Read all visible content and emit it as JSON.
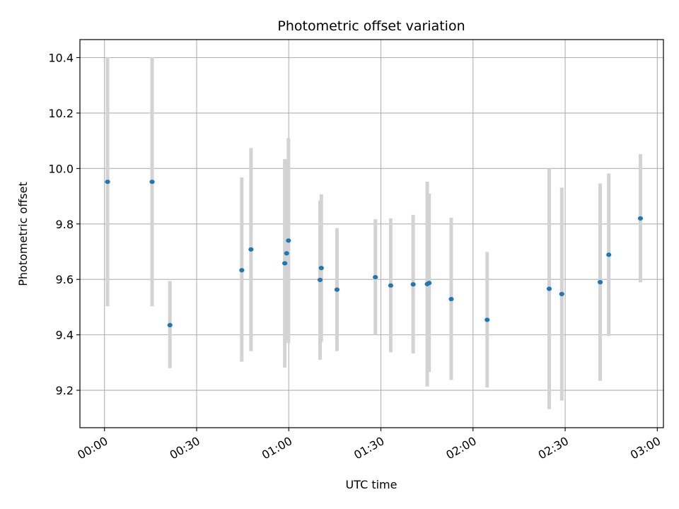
{
  "chart_data": {
    "type": "scatter",
    "title": "Photometric offset variation",
    "xlabel": "UTC time",
    "ylabel": "Photometric offset",
    "x_unit": "minutes after 00:00 UTC",
    "xlim": [
      -8,
      182
    ],
    "ylim": [
      9.065,
      10.465
    ],
    "x_ticks": [
      {
        "value": 0,
        "label": "00:00"
      },
      {
        "value": 30,
        "label": "00:30"
      },
      {
        "value": 60,
        "label": "01:00"
      },
      {
        "value": 90,
        "label": "01:30"
      },
      {
        "value": 120,
        "label": "02:00"
      },
      {
        "value": 150,
        "label": "02:30"
      },
      {
        "value": 180,
        "label": "03:00"
      }
    ],
    "y_ticks": [
      {
        "value": 9.2,
        "label": "9.2"
      },
      {
        "value": 9.4,
        "label": "9.4"
      },
      {
        "value": 9.6,
        "label": "9.6"
      },
      {
        "value": 9.8,
        "label": "9.8"
      },
      {
        "value": 10.0,
        "label": "10.0"
      },
      {
        "value": 10.2,
        "label": "10.2"
      },
      {
        "value": 10.4,
        "label": "10.4"
      }
    ],
    "grid": true,
    "point_color": "#1f77b4",
    "errorbar_color": "#d3d3d3",
    "points": [
      {
        "x": 1.0,
        "y": 9.952,
        "ylow": 9.503,
        "yhigh": 10.402
      },
      {
        "x": 15.5,
        "y": 9.952,
        "ylow": 9.503,
        "yhigh": 10.402
      },
      {
        "x": 21.3,
        "y": 9.435,
        "ylow": 9.28,
        "yhigh": 9.594
      },
      {
        "x": 44.7,
        "y": 9.633,
        "ylow": 9.303,
        "yhigh": 9.968
      },
      {
        "x": 47.7,
        "y": 9.708,
        "ylow": 9.341,
        "yhigh": 10.074
      },
      {
        "x": 58.7,
        "y": 9.658,
        "ylow": 9.282,
        "yhigh": 10.034
      },
      {
        "x": 59.3,
        "y": 9.694,
        "ylow": 9.383,
        "yhigh": 10.03
      },
      {
        "x": 59.9,
        "y": 9.74,
        "ylow": 9.37,
        "yhigh": 10.11
      },
      {
        "x": 70.2,
        "y": 9.598,
        "ylow": 9.31,
        "yhigh": 9.885
      },
      {
        "x": 70.6,
        "y": 9.641,
        "ylow": 9.375,
        "yhigh": 9.907
      },
      {
        "x": 75.7,
        "y": 9.563,
        "ylow": 9.341,
        "yhigh": 9.785
      },
      {
        "x": 88.2,
        "y": 9.608,
        "ylow": 9.4,
        "yhigh": 9.817
      },
      {
        "x": 93.2,
        "y": 9.578,
        "ylow": 9.337,
        "yhigh": 9.82
      },
      {
        "x": 100.5,
        "y": 9.582,
        "ylow": 9.333,
        "yhigh": 9.833
      },
      {
        "x": 105.1,
        "y": 9.583,
        "ylow": 9.214,
        "yhigh": 9.952
      },
      {
        "x": 105.7,
        "y": 9.587,
        "ylow": 9.266,
        "yhigh": 9.909
      },
      {
        "x": 112.9,
        "y": 9.529,
        "ylow": 9.237,
        "yhigh": 9.822
      },
      {
        "x": 124.6,
        "y": 9.454,
        "ylow": 9.21,
        "yhigh": 9.699
      },
      {
        "x": 144.8,
        "y": 9.566,
        "ylow": 9.132,
        "yhigh": 10.0
      },
      {
        "x": 148.9,
        "y": 9.547,
        "ylow": 9.163,
        "yhigh": 9.931
      },
      {
        "x": 161.4,
        "y": 9.59,
        "ylow": 9.234,
        "yhigh": 9.946
      },
      {
        "x": 164.2,
        "y": 9.689,
        "ylow": 9.396,
        "yhigh": 9.982
      },
      {
        "x": 174.5,
        "y": 9.82,
        "ylow": 9.589,
        "yhigh": 10.052
      }
    ]
  }
}
